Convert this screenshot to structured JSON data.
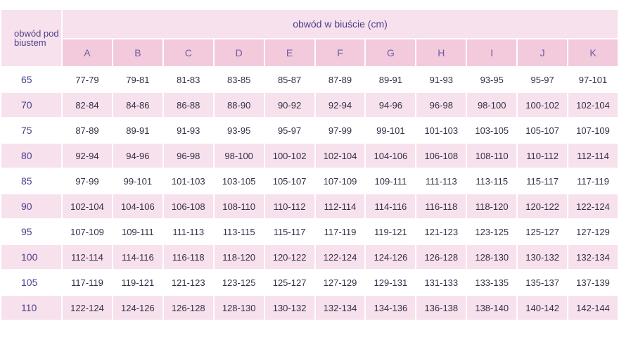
{
  "corner_label": "obwód pod biustem",
  "header_title": "obwód w biuście (cm)",
  "columns": [
    "A",
    "B",
    "C",
    "D",
    "E",
    "F",
    "G",
    "H",
    "I",
    "J",
    "K"
  ],
  "rows": [
    {
      "label": "65",
      "cells": [
        "77-79",
        "79-81",
        "81-83",
        "83-85",
        "85-87",
        "87-89",
        "89-91",
        "91-93",
        "93-95",
        "95-97",
        "97-101"
      ]
    },
    {
      "label": "70",
      "cells": [
        "82-84",
        "84-86",
        "86-88",
        "88-90",
        "90-92",
        "92-94",
        "94-96",
        "96-98",
        "98-100",
        "100-102",
        "102-104"
      ]
    },
    {
      "label": "75",
      "cells": [
        "87-89",
        "89-91",
        "91-93",
        "93-95",
        "95-97",
        "97-99",
        "99-101",
        "101-103",
        "103-105",
        "105-107",
        "107-109"
      ]
    },
    {
      "label": "80",
      "cells": [
        "92-94",
        "94-96",
        "96-98",
        "98-100",
        "100-102",
        "102-104",
        "104-106",
        "106-108",
        "108-110",
        "110-112",
        "112-114"
      ]
    },
    {
      "label": "85",
      "cells": [
        "97-99",
        "99-101",
        "101-103",
        "103-105",
        "105-107",
        "107-109",
        "109-111",
        "111-113",
        "113-115",
        "115-117",
        "117-119"
      ]
    },
    {
      "label": "90",
      "cells": [
        "102-104",
        "104-106",
        "106-108",
        "108-110",
        "110-112",
        "112-114",
        "114-116",
        "116-118",
        "118-120",
        "120-122",
        "122-124"
      ]
    },
    {
      "label": "95",
      "cells": [
        "107-109",
        "109-111",
        "111-113",
        "113-115",
        "115-117",
        "117-119",
        "119-121",
        "121-123",
        "123-125",
        "125-127",
        "127-129"
      ]
    },
    {
      "label": "100",
      "cells": [
        "112-114",
        "114-116",
        "116-118",
        "118-120",
        "120-122",
        "122-124",
        "124-126",
        "126-128",
        "128-130",
        "130-132",
        "132-134"
      ]
    },
    {
      "label": "105",
      "cells": [
        "117-119",
        "119-121",
        "121-123",
        "123-125",
        "125-127",
        "127-129",
        "129-131",
        "131-133",
        "133-135",
        "135-137",
        "137-139"
      ]
    },
    {
      "label": "110",
      "cells": [
        "122-124",
        "124-126",
        "126-128",
        "128-130",
        "130-132",
        "132-134",
        "134-136",
        "136-138",
        "138-140",
        "140-142",
        "142-144"
      ]
    }
  ],
  "colors": {
    "header_bg": "#f7e1ec",
    "column_head_bg": "#f3c9dc",
    "stripe_bg": "#f7e1ec",
    "text_accent": "#4b3f8c"
  }
}
